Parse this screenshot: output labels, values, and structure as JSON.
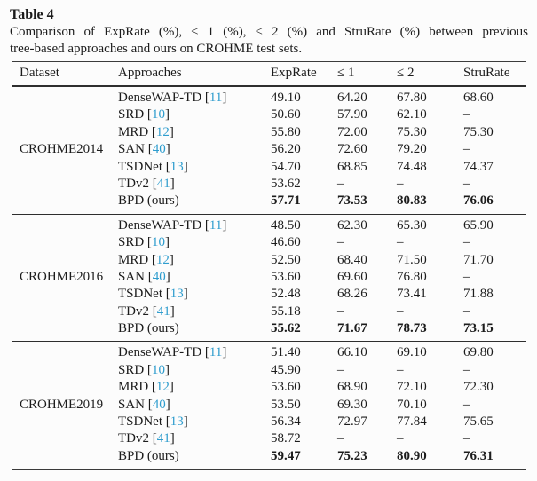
{
  "title": "Table 4",
  "caption": {
    "line1": "Comparison of ExpRate (%), ≤ 1 (%), ≤ 2 (%) and StruRate (%) between previous",
    "line2": "tree-based approaches and ours on CROHME test sets."
  },
  "colors": {
    "citation_blue": "#2f9dce",
    "text": "#1c1c1c",
    "rule": "#2e2e2e",
    "background": "#fcfcfc"
  },
  "table": {
    "columns": {
      "dataset": "Dataset",
      "approaches": "Approaches",
      "exprate": "ExpRate",
      "leq1": "≤ 1",
      "leq2": "≤ 2",
      "strurate": "StruRate"
    },
    "groups": [
      {
        "dataset": "CROHME2014",
        "rows": [
          {
            "approach": "DenseWAP-TD",
            "cite": "11",
            "values": [
              "49.10",
              "64.20",
              "67.80",
              "68.60"
            ],
            "bold": false
          },
          {
            "approach": "SRD",
            "cite": "10",
            "values": [
              "50.60",
              "57.90",
              "62.10",
              "–"
            ],
            "bold": false
          },
          {
            "approach": "MRD",
            "cite": "12",
            "values": [
              "55.80",
              "72.00",
              "75.30",
              "75.30"
            ],
            "bold": false
          },
          {
            "approach": "SAN",
            "cite": "40",
            "values": [
              "56.20",
              "72.60",
              "79.20",
              "–"
            ],
            "bold": false
          },
          {
            "approach": "TSDNet",
            "cite": "13",
            "values": [
              "54.70",
              "68.85",
              "74.48",
              "74.37"
            ],
            "bold": false
          },
          {
            "approach": "TDv2",
            "cite": "41",
            "values": [
              "53.62",
              "–",
              "–",
              "–"
            ],
            "bold": false
          },
          {
            "approach": "BPD (ours)",
            "cite": null,
            "values": [
              "57.71",
              "73.53",
              "80.83",
              "76.06"
            ],
            "bold": true
          }
        ]
      },
      {
        "dataset": "CROHME2016",
        "rows": [
          {
            "approach": "DenseWAP-TD",
            "cite": "11",
            "values": [
              "48.50",
              "62.30",
              "65.30",
              "65.90"
            ],
            "bold": false
          },
          {
            "approach": "SRD",
            "cite": "10",
            "values": [
              "46.60",
              "–",
              "–",
              "–"
            ],
            "bold": false
          },
          {
            "approach": "MRD",
            "cite": "12",
            "values": [
              "52.50",
              "68.40",
              "71.50",
              "71.70"
            ],
            "bold": false
          },
          {
            "approach": "SAN",
            "cite": "40",
            "values": [
              "53.60",
              "69.60",
              "76.80",
              "–"
            ],
            "bold": false
          },
          {
            "approach": "TSDNet",
            "cite": "13",
            "values": [
              "52.48",
              "68.26",
              "73.41",
              "71.88"
            ],
            "bold": false
          },
          {
            "approach": "TDv2",
            "cite": "41",
            "values": [
              "55.18",
              "–",
              "–",
              "–"
            ],
            "bold": false
          },
          {
            "approach": "BPD (ours)",
            "cite": null,
            "values": [
              "55.62",
              "71.67",
              "78.73",
              "73.15"
            ],
            "bold": true
          }
        ]
      },
      {
        "dataset": "CROHME2019",
        "rows": [
          {
            "approach": "DenseWAP-TD",
            "cite": "11",
            "values": [
              "51.40",
              "66.10",
              "69.10",
              "69.80"
            ],
            "bold": false
          },
          {
            "approach": "SRD",
            "cite": "10",
            "values": [
              "45.90",
              "–",
              "–",
              "–"
            ],
            "bold": false
          },
          {
            "approach": "MRD",
            "cite": "12",
            "values": [
              "53.60",
              "68.90",
              "72.10",
              "72.30"
            ],
            "bold": false
          },
          {
            "approach": "SAN",
            "cite": "40",
            "values": [
              "53.50",
              "69.30",
              "70.10",
              "–"
            ],
            "bold": false
          },
          {
            "approach": "TSDNet",
            "cite": "13",
            "values": [
              "56.34",
              "72.97",
              "77.84",
              "75.65"
            ],
            "bold": false
          },
          {
            "approach": "TDv2",
            "cite": "41",
            "values": [
              "58.72",
              "–",
              "–",
              "–"
            ],
            "bold": false
          },
          {
            "approach": "BPD (ours)",
            "cite": null,
            "values": [
              "59.47",
              "75.23",
              "80.90",
              "76.31"
            ],
            "bold": true
          }
        ]
      }
    ]
  }
}
